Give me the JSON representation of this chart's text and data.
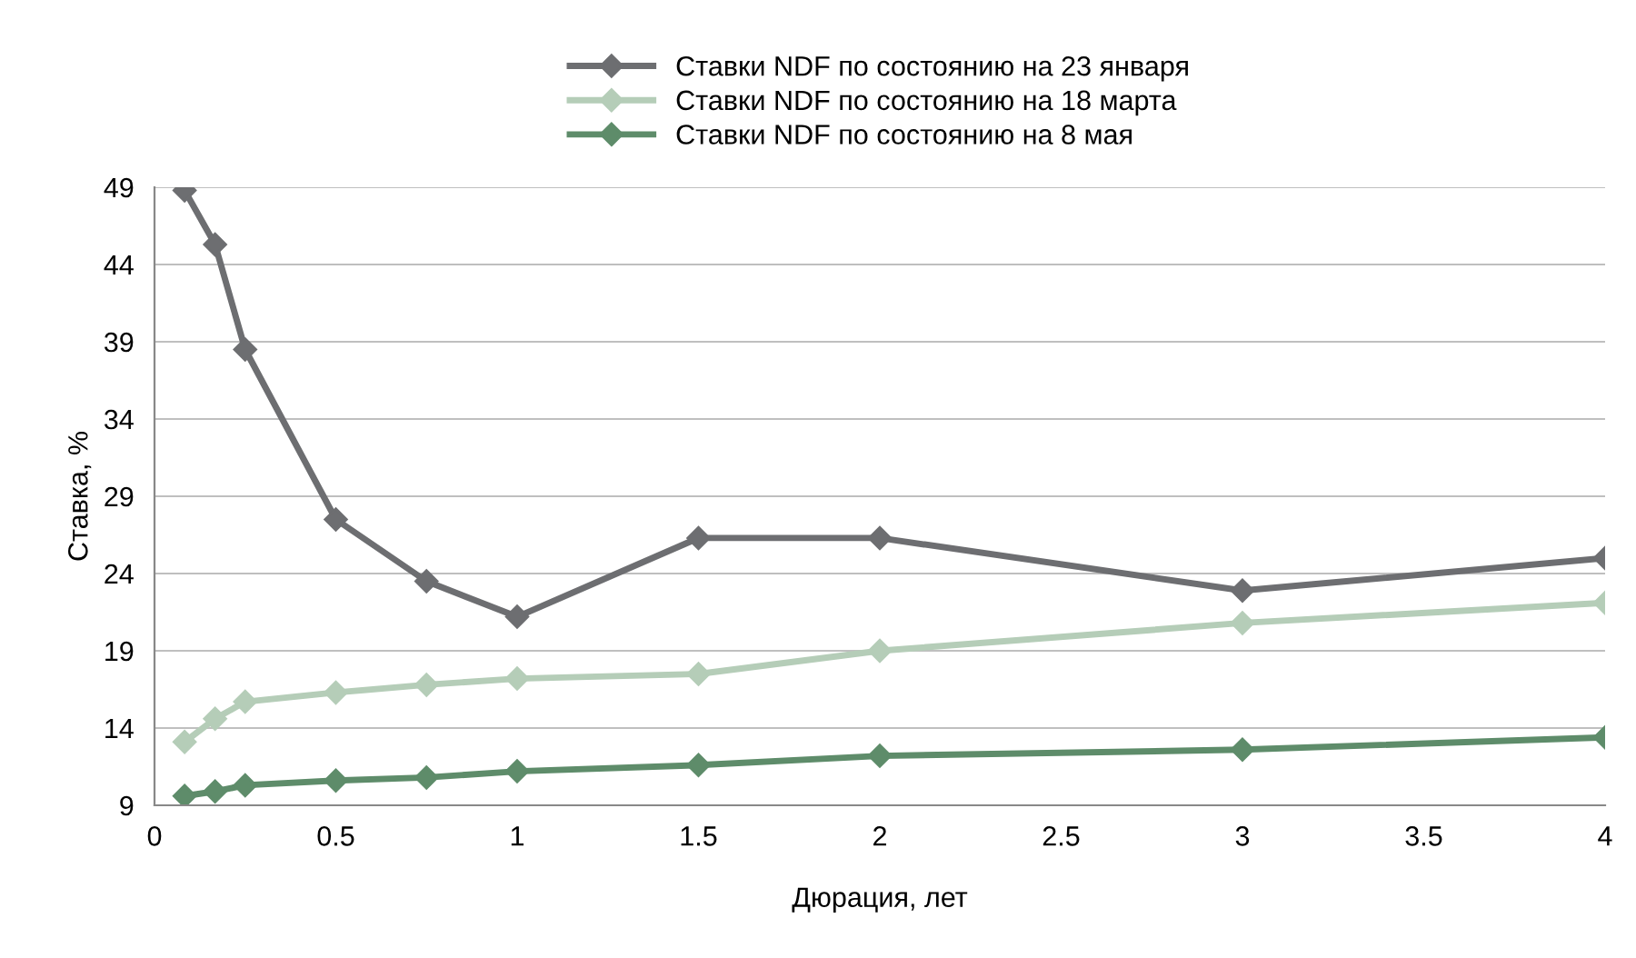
{
  "chart_data": {
    "type": "line",
    "xlabel": "Дюрация, лет",
    "ylabel": "Ставка, %",
    "xlim": [
      0,
      4
    ],
    "xticks": [
      0,
      0.5,
      1,
      1.5,
      2,
      2.5,
      3,
      3.5,
      4
    ],
    "ylim": [
      9,
      49
    ],
    "yticks": [
      9,
      14,
      19,
      24,
      29,
      34,
      39,
      44,
      49
    ],
    "grid": "y",
    "legend": "top",
    "marker": "diamond",
    "line_style": "solid",
    "series": [
      {
        "name": "Ставки NDF по состоянию на 23 января",
        "color": "#6d6e71",
        "x": [
          0.083,
          0.167,
          0.25,
          0.5,
          0.75,
          1,
          1.5,
          2,
          3,
          4
        ],
        "values": [
          48.8,
          45.3,
          38.5,
          27.5,
          23.5,
          21.2,
          26.3,
          26.3,
          22.9,
          25.0
        ]
      },
      {
        "name": "Ставки NDF по состоянию на 18 марта",
        "color": "#b5cdb8",
        "x": [
          0.083,
          0.167,
          0.25,
          0.5,
          0.75,
          1,
          1.5,
          2,
          3,
          4
        ],
        "values": [
          13.1,
          14.6,
          15.7,
          16.3,
          16.8,
          17.2,
          17.5,
          19.0,
          20.8,
          22.1
        ]
      },
      {
        "name": "Ставки NDF по состоянию на 8 мая",
        "color": "#5e8c6a",
        "x": [
          0.083,
          0.167,
          0.25,
          0.5,
          0.75,
          1,
          1.5,
          2,
          3,
          4
        ],
        "values": [
          9.6,
          9.9,
          10.3,
          10.6,
          10.8,
          11.2,
          11.6,
          12.2,
          12.6,
          13.4
        ]
      }
    ]
  }
}
